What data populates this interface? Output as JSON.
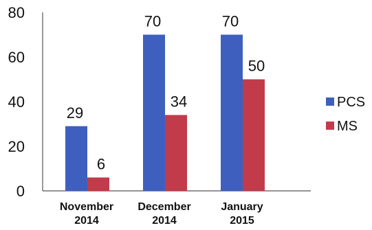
{
  "chart_data": {
    "type": "bar",
    "categories": [
      [
        "November",
        "2014"
      ],
      [
        "December",
        "2014"
      ],
      [
        "January",
        "2015"
      ]
    ],
    "series": [
      {
        "name": "PCS",
        "values": [
          29,
          70,
          70
        ],
        "color": "#3f5fbf"
      },
      {
        "name": "MS",
        "values": [
          6,
          34,
          50
        ],
        "color": "#c23b4a"
      }
    ],
    "yticks": [
      "0",
      "20",
      "40",
      "60",
      "80"
    ],
    "ylim": [
      0,
      80
    ],
    "title": "",
    "xlabel": "",
    "ylabel": "",
    "grid": false,
    "legend": "right"
  }
}
